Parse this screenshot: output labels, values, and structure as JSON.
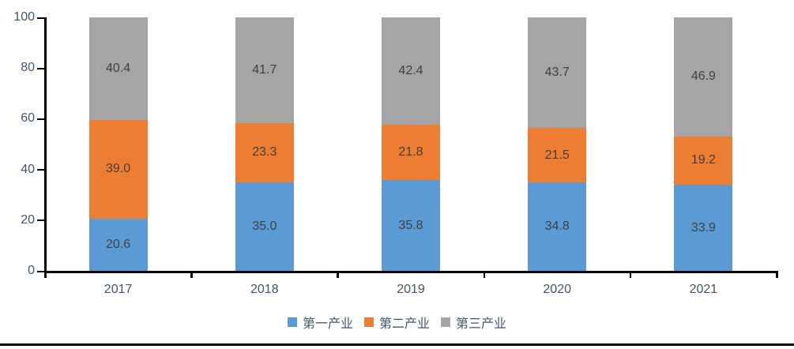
{
  "chart_data": {
    "type": "bar",
    "stacked": true,
    "orientation": "vertical",
    "title": "",
    "xlabel": "",
    "ylabel": "",
    "categories": [
      "2017",
      "2018",
      "2019",
      "2020",
      "2021"
    ],
    "series": [
      {
        "name": "第一产业",
        "color": "#5B9BD5",
        "values": [
          20.6,
          35.0,
          35.8,
          34.8,
          33.9
        ]
      },
      {
        "name": "第二产业",
        "color": "#ED7D31",
        "values": [
          39.0,
          23.3,
          21.8,
          21.5,
          19.2
        ]
      },
      {
        "name": "第三产业",
        "color": "#A5A5A5",
        "values": [
          40.4,
          41.7,
          42.4,
          43.7,
          46.9
        ]
      }
    ],
    "ylim": [
      0,
      100
    ],
    "yticks": [
      0,
      20,
      40,
      60,
      80,
      100
    ],
    "grid": false,
    "legend_position": "bottom",
    "data_label_decimals": 1,
    "colors": {
      "axis_line": "#000000",
      "tick_label": "#44546A",
      "data_label": "#404040",
      "page_rule": "#000000"
    }
  }
}
